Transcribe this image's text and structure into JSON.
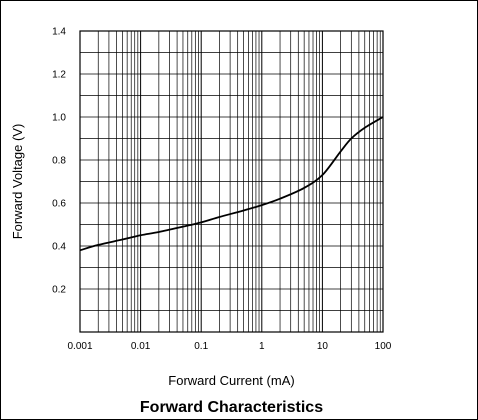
{
  "chart_data": {
    "type": "line",
    "title": "Forward Characteristics",
    "xlabel": "Forward Current (mA)",
    "ylabel": "Forward Voltage  (V)",
    "x_scale": "log",
    "xlim": [
      0.001,
      100
    ],
    "ylim": [
      0,
      1.4
    ],
    "x_ticks": [
      {
        "value": 0.001,
        "label": "0.001"
      },
      {
        "value": 0.01,
        "label": "0.01"
      },
      {
        "value": 0.1,
        "label": "0.1"
      },
      {
        "value": 1,
        "label": "1"
      },
      {
        "value": 10,
        "label": "10"
      },
      {
        "value": 100,
        "label": "100"
      }
    ],
    "y_ticks": [
      {
        "value": 0.2,
        "label": "0.2"
      },
      {
        "value": 0.4,
        "label": "0.4"
      },
      {
        "value": 0.6,
        "label": "0.6"
      },
      {
        "value": 0.8,
        "label": "0.8"
      },
      {
        "value": 1.0,
        "label": "1.0"
      },
      {
        "value": 1.2,
        "label": "1.2"
      },
      {
        "value": 1.4,
        "label": "1.4"
      }
    ],
    "y_minor_step": 0.1,
    "grid": true,
    "series": [
      {
        "x": [
          0.001,
          0.002,
          0.005,
          0.01,
          0.02,
          0.05,
          0.1,
          0.2,
          0.5,
          1,
          2,
          5,
          10,
          20,
          30,
          50,
          100
        ],
        "y": [
          0.38,
          0.405,
          0.43,
          0.45,
          0.465,
          0.49,
          0.51,
          0.535,
          0.565,
          0.59,
          0.62,
          0.67,
          0.73,
          0.84,
          0.9,
          0.95,
          1.0
        ]
      }
    ]
  },
  "colors": {
    "line": "#000000",
    "grid": "#000000",
    "background": "#ffffff"
  }
}
